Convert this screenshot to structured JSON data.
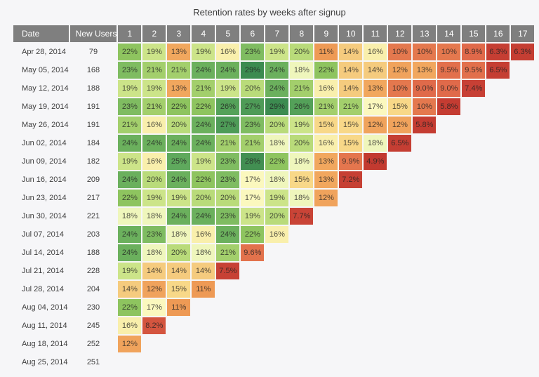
{
  "title": "Retention rates by weeks after signup",
  "table": {
    "row_header_labels": [
      "Date",
      "New Users"
    ]
  },
  "chart_data": {
    "type": "heatmap",
    "title": "Retention rates by weeks after signup",
    "x_axis_meaning": "weeks after signup",
    "week_numbers": [
      "1",
      "2",
      "3",
      "4",
      "5",
      "6",
      "7",
      "8",
      "9",
      "10",
      "11",
      "12",
      "13",
      "14",
      "15",
      "16",
      "17"
    ],
    "value_format": "percent, one decimal shown below 10",
    "rows": [
      {
        "date": "Apr 28, 2014",
        "new_users": 79,
        "retention_pct": [
          22,
          19,
          13,
          19,
          16,
          23,
          19,
          20,
          11,
          14,
          16,
          10,
          10,
          10,
          8.9,
          6.3,
          6.3
        ]
      },
      {
        "date": "May 05, 2014",
        "new_users": 168,
        "retention_pct": [
          23,
          21,
          21,
          24,
          24,
          29,
          24,
          18,
          22,
          14,
          14,
          12,
          13,
          9.5,
          9.5,
          6.5
        ]
      },
      {
        "date": "May 12, 2014",
        "new_users": 188,
        "retention_pct": [
          19,
          19,
          13,
          21,
          19,
          20,
          24,
          21,
          16,
          14,
          13,
          10,
          9.0,
          9.0,
          7.4
        ]
      },
      {
        "date": "May 19, 2014",
        "new_users": 191,
        "retention_pct": [
          23,
          21,
          22,
          22,
          26,
          27,
          29,
          26,
          21,
          21,
          17,
          15,
          10,
          5.8
        ]
      },
      {
        "date": "May 26, 2014",
        "new_users": 191,
        "retention_pct": [
          21,
          16,
          20,
          24,
          27,
          23,
          20,
          19,
          15,
          15,
          12,
          12,
          5.8
        ]
      },
      {
        "date": "Jun 02, 2014",
        "new_users": 184,
        "retention_pct": [
          24,
          24,
          24,
          24,
          21,
          21,
          18,
          20,
          16,
          15,
          18,
          6.5
        ]
      },
      {
        "date": "Jun 09, 2014",
        "new_users": 182,
        "retention_pct": [
          19,
          16,
          25,
          19,
          23,
          28,
          22,
          18,
          13,
          9.9,
          4.9
        ]
      },
      {
        "date": "Jun 16, 2014",
        "new_users": 209,
        "retention_pct": [
          24,
          20,
          24,
          22,
          23,
          17,
          18,
          15,
          13,
          7.2
        ]
      },
      {
        "date": "Jun 23, 2014",
        "new_users": 217,
        "retention_pct": [
          22,
          19,
          19,
          20,
          20,
          17,
          19,
          18,
          12
        ]
      },
      {
        "date": "Jun 30, 2014",
        "new_users": 221,
        "retention_pct": [
          18,
          18,
          24,
          24,
          23,
          19,
          20,
          7.7
        ]
      },
      {
        "date": "Jul 07, 2014",
        "new_users": 203,
        "retention_pct": [
          24,
          23,
          18,
          16,
          24,
          22,
          16
        ]
      },
      {
        "date": "Jul 14, 2014",
        "new_users": 188,
        "retention_pct": [
          24,
          18,
          20,
          18,
          21,
          9.6
        ]
      },
      {
        "date": "Jul 21, 2014",
        "new_users": 228,
        "retention_pct": [
          19,
          14,
          14,
          14,
          7.5
        ]
      },
      {
        "date": "Jul 28, 2014",
        "new_users": 204,
        "retention_pct": [
          14,
          12,
          15,
          11
        ]
      },
      {
        "date": "Aug 04, 2014",
        "new_users": 230,
        "retention_pct": [
          22,
          17,
          11
        ]
      },
      {
        "date": "Aug 11, 2014",
        "new_users": 245,
        "retention_pct": [
          16,
          8.2
        ]
      },
      {
        "date": "Aug 18, 2014",
        "new_users": 252,
        "retention_pct": [
          12
        ]
      },
      {
        "date": "Aug 25, 2014",
        "new_users": 251,
        "retention_pct": []
      }
    ],
    "color_scale": {
      "type": "linear interpolation, red-yellow-green",
      "domain": [
        4.9,
        29
      ],
      "anchors": [
        [
          4.9,
          "#C23A30"
        ],
        [
          7.6,
          "#C74135"
        ],
        [
          8.2,
          "#D4553F"
        ],
        [
          8.9,
          "#E0694A"
        ],
        [
          9.5,
          "#E2704C"
        ],
        [
          10,
          "#E4784E"
        ],
        [
          11,
          "#EE9A55"
        ],
        [
          12,
          "#F0A35C"
        ],
        [
          13,
          "#F1A75E"
        ],
        [
          14,
          "#F5CB7E"
        ],
        [
          15,
          "#F8D888"
        ],
        [
          16,
          "#F9EFAC"
        ],
        [
          17,
          "#FBF8BE"
        ],
        [
          18,
          "#EFF6BC"
        ],
        [
          19,
          "#CCE489"
        ],
        [
          20,
          "#B9DB7A"
        ],
        [
          21,
          "#A3CF6C"
        ],
        [
          22,
          "#8EC45F"
        ],
        [
          23,
          "#7FBC61"
        ],
        [
          24,
          "#6BB05D"
        ],
        [
          25,
          "#5FA95D"
        ],
        [
          26,
          "#54A159"
        ],
        [
          27,
          "#4E9B57"
        ],
        [
          28,
          "#428F52"
        ],
        [
          29,
          "#3C8B50"
        ]
      ]
    },
    "colors": {
      "page_bg": "#F6F6F8",
      "header_bg": "#7F7F7F",
      "header_text": "#FFFFFF",
      "cell_text": "#3E3E3E",
      "grid_gap": "#FFFFFF"
    }
  }
}
